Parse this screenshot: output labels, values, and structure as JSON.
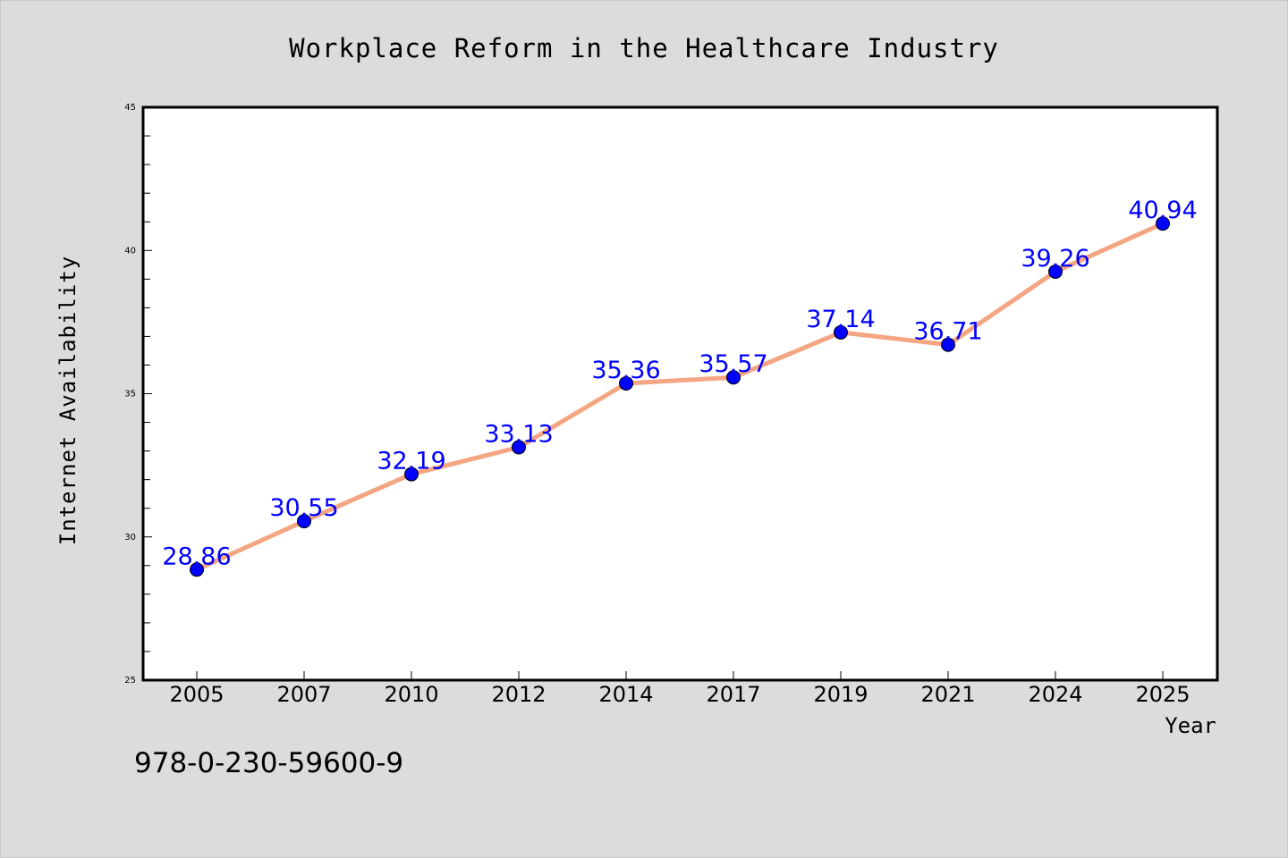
{
  "chart_data": {
    "type": "line",
    "title": "Workplace Reform in the Healthcare Industry",
    "xlabel": "Year",
    "ylabel": "Internet Availability",
    "categories": [
      "2005",
      "2007",
      "2010",
      "2012",
      "2014",
      "2017",
      "2019",
      "2021",
      "2024",
      "2025"
    ],
    "series": [
      {
        "values": [
          28.86,
          30.55,
          32.19,
          33.13,
          35.36,
          35.57,
          37.14,
          36.71,
          39.26,
          40.94
        ],
        "data_labels": [
          "28.86",
          "30.55",
          "32.19",
          "33.13",
          "35.36",
          "35.57",
          "37.14",
          "36.71",
          "39.26",
          "40.94"
        ]
      }
    ],
    "ylim": [
      25,
      45
    ],
    "yticks": [
      25,
      30,
      35,
      40,
      45
    ],
    "ytick_labels": [
      "25",
      "30",
      "35",
      "40",
      "45"
    ],
    "grid": false,
    "colors": {
      "line": "#f4a582",
      "marker": "#0000ff",
      "data_label": "#0000ff",
      "background": "#dcdcdc",
      "plot_background": "#ffffff"
    }
  },
  "annotation": {
    "isbn": "978-0-230-59600-9"
  }
}
